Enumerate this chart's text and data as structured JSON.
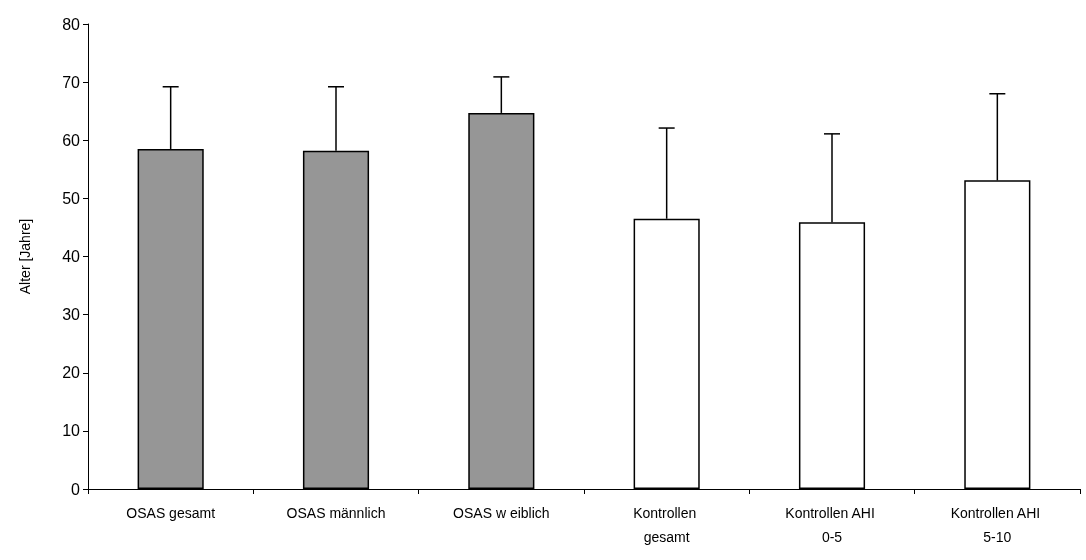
{
  "chart_data": {
    "type": "bar",
    "ylabel": "Alter [Jahre]",
    "categories": [
      "OSAS gesamt",
      "OSAS männlich",
      "OSAS w eiblich",
      "Kontrollen gesamt",
      "Kontrollen AHI 0-5",
      "Kontrollen AHI 5-10"
    ],
    "values": [
      58.5,
      58.2,
      64.7,
      46.5,
      45.9,
      53.1
    ],
    "colors": [
      "#969696",
      "#969696",
      "#969696",
      "#ffffff",
      "#ffffff",
      "#ffffff"
    ],
    "errors": [
      [
        58.5,
        69.2
      ],
      [
        58.2,
        69.2
      ],
      [
        64.7,
        70.9
      ],
      [
        46.5,
        62.1
      ],
      [
        45.9,
        61.1
      ],
      [
        53.1,
        68.0
      ]
    ],
    "ylim": [
      0,
      80
    ],
    "yticks": [
      0,
      10,
      20,
      30,
      40,
      50,
      60,
      70,
      80
    ],
    "grid": false
  }
}
